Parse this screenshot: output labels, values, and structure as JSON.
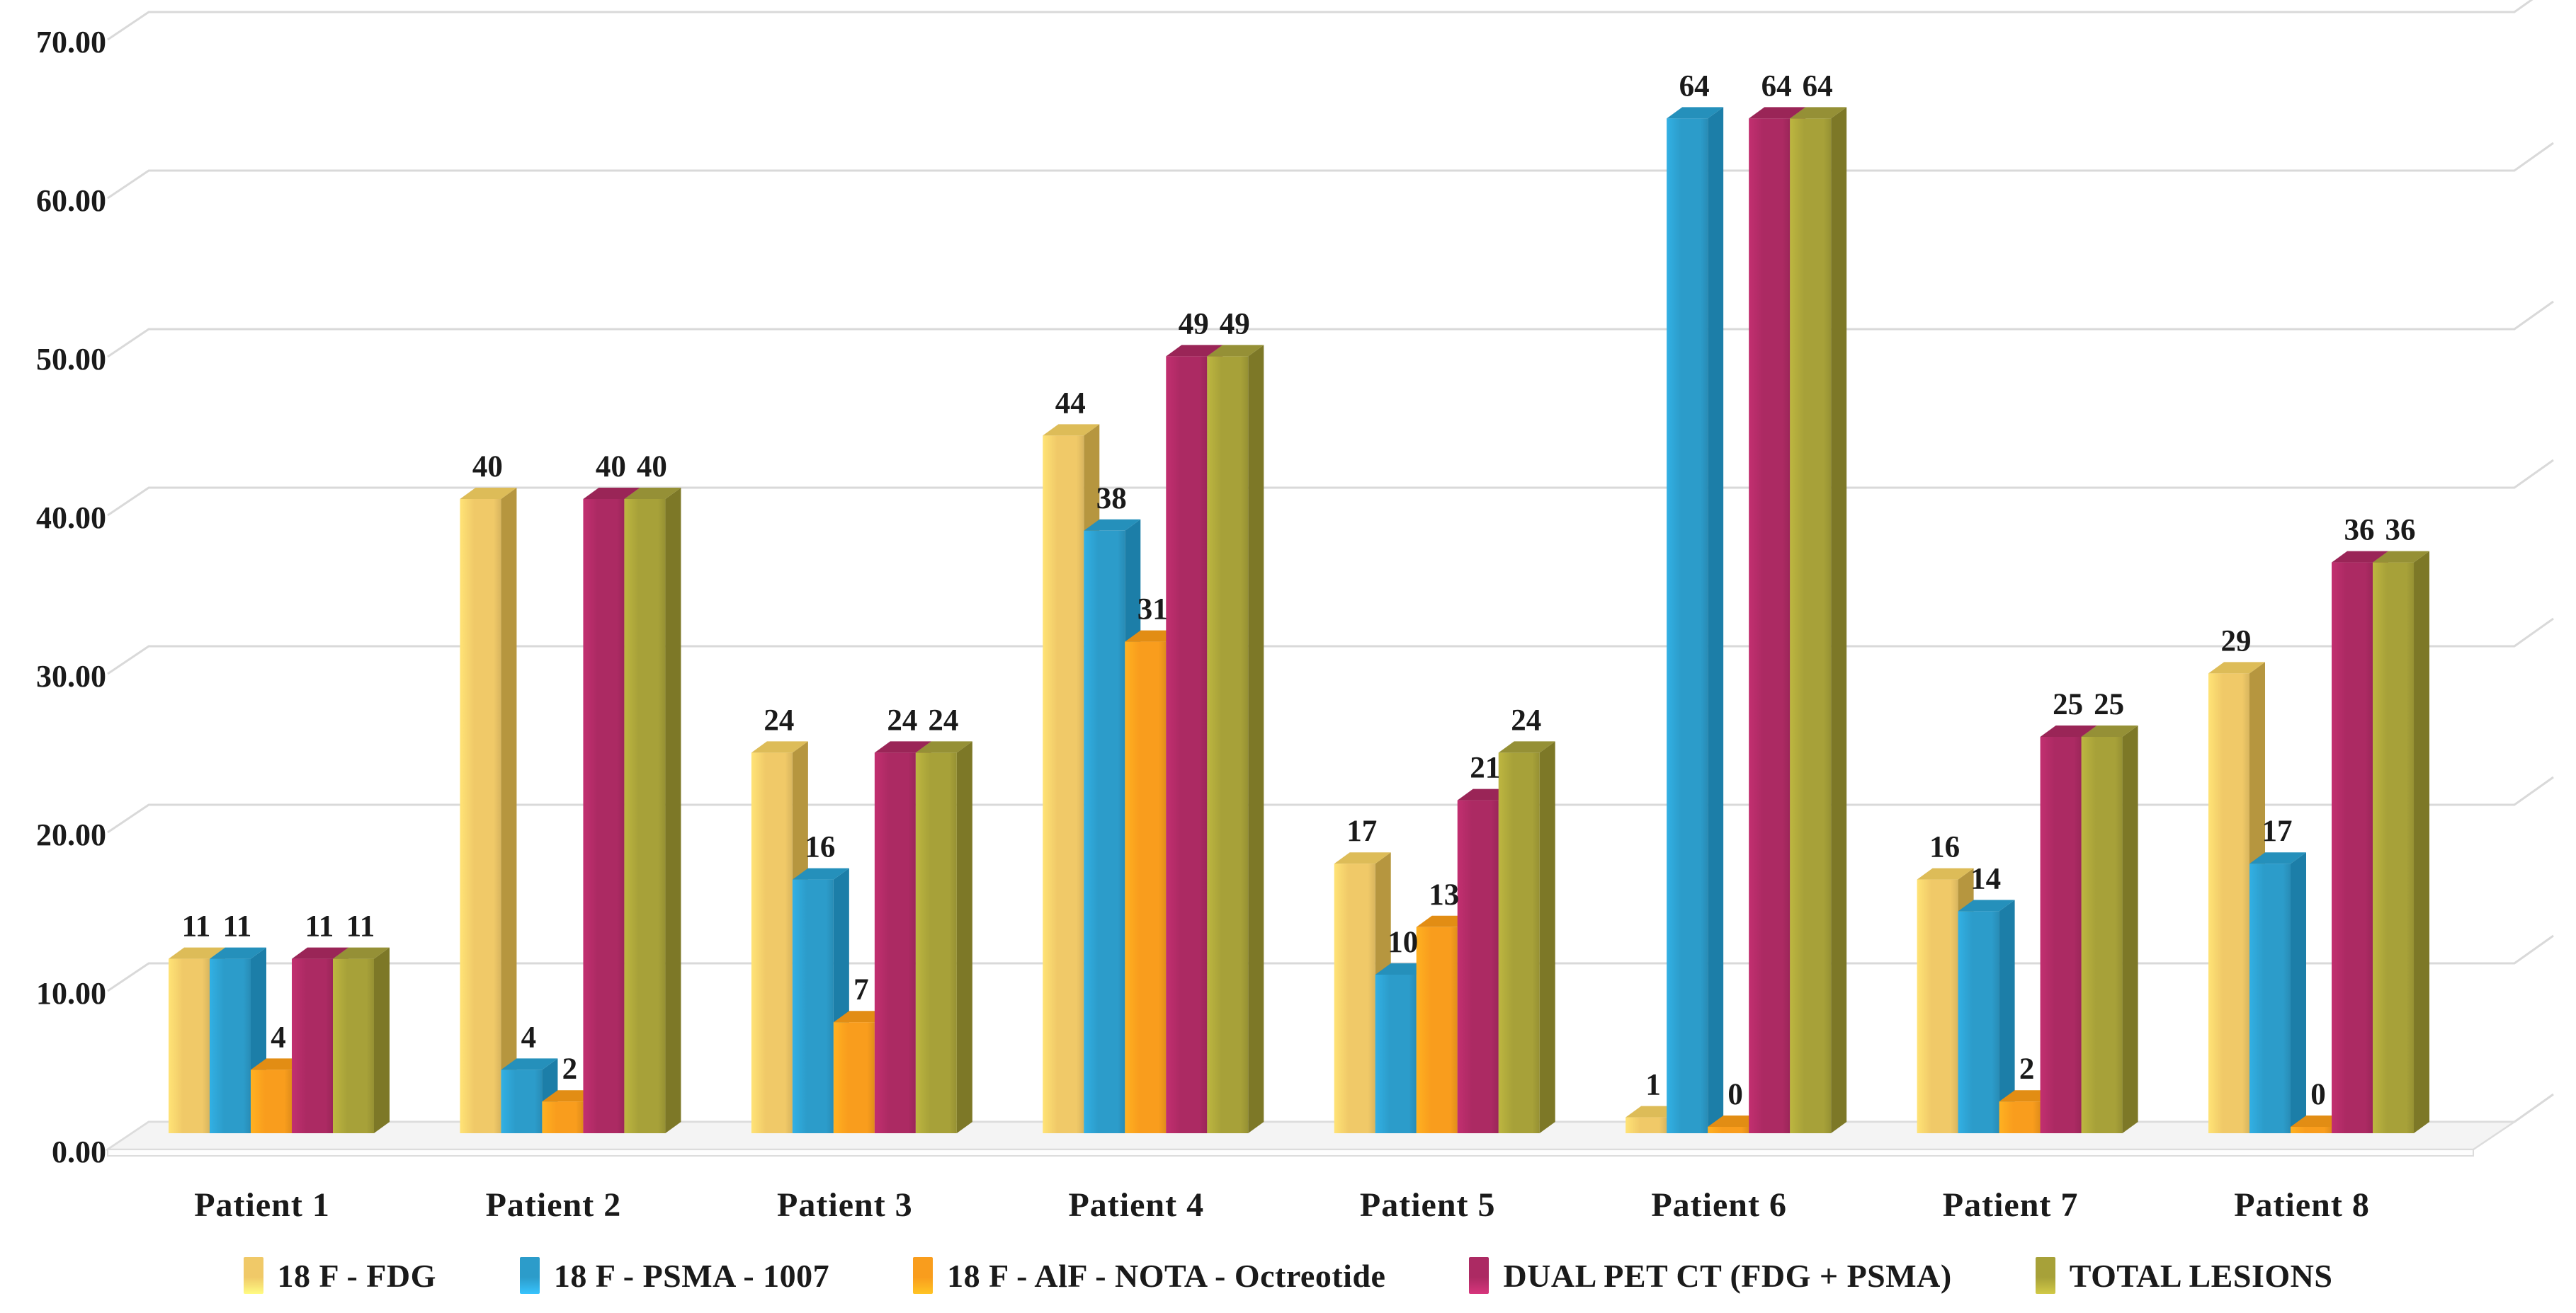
{
  "chart_data": {
    "type": "bar",
    "projection": "3d-oblique",
    "title": "",
    "categories": [
      "Patient 1",
      "Patient 2",
      "Patient 3",
      "Patient 4",
      "Patient 5",
      "Patient 6",
      "Patient 7",
      "Patient 8"
    ],
    "series": [
      {
        "name": "18 F - FDG",
        "values": [
          11,
          40,
          24,
          44,
          17,
          1,
          16,
          29
        ],
        "color": {
          "front": "#F0C968",
          "side": "#B6963F",
          "top": "#DDBC58"
        }
      },
      {
        "name": "18 F - PSMA - 1007",
        "values": [
          11,
          4,
          16,
          38,
          10,
          64,
          14,
          17
        ],
        "color": {
          "front": "#2C9CCA",
          "side": "#1C7EA8",
          "top": "#2590BB"
        }
      },
      {
        "name": "18 F - AlF - NOTA - Octreotide",
        "values": [
          4,
          2,
          7,
          31,
          13,
          0,
          2,
          0
        ],
        "color": {
          "front": "#F99D1D",
          "side": "#C77B10",
          "top": "#E28D14"
        }
      },
      {
        "name": "DUAL PET CT (FDG + PSMA)",
        "values": [
          11,
          40,
          24,
          49,
          21,
          64,
          25,
          36
        ],
        "color": {
          "front": "#AC2A63",
          "side": "#801F4B",
          "top": "#9A2557"
        }
      },
      {
        "name": "TOTAL LESIONS",
        "values": [
          11,
          40,
          24,
          49,
          24,
          64,
          25,
          36
        ],
        "color": {
          "front": "#A7A139",
          "side": "#7D7827",
          "top": "#959036"
        }
      }
    ],
    "ylim": [
      0,
      70
    ],
    "ytick_step": 10,
    "ytick_decimals": 2,
    "ytick_labels": [
      "0.00",
      "10.00",
      "20.00",
      "30.00",
      "40.00",
      "50.00",
      "60.00",
      "70.00"
    ],
    "grid": "horizontal",
    "legend_position": "bottom",
    "colors": {
      "gridline": "#D9D9D9",
      "floor_top": "#F4F4F4",
      "floor_edge": "#DCDCDC",
      "floor_lip": "#FDFDFD",
      "text": "#1A1A1A"
    }
  }
}
